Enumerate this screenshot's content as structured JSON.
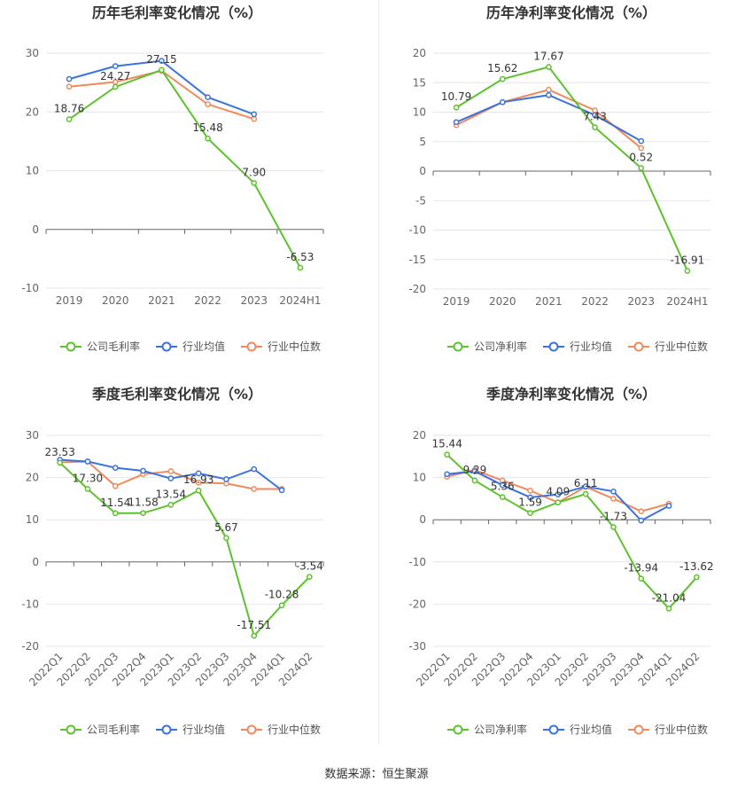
{
  "source_text": "数据来源：恒生聚源",
  "legend_labels": {
    "annual_gross": [
      "公司毛利率",
      "行业均值",
      "行业中位数"
    ],
    "annual_net": [
      "公司净利率",
      "行业均值",
      "行业中位数"
    ],
    "quarterly_gross": [
      "公司毛利率",
      "行业均值",
      "行业中位数"
    ],
    "quarterly_net": [
      "公司净利率",
      "行业均值",
      "行业中位数"
    ]
  },
  "colors": {
    "company": "#5ec12f",
    "avg": "#3b73db",
    "median": "#f08a5d",
    "grid": "#e6e6e6",
    "axis": "#555555"
  },
  "chart_data": [
    {
      "id": "annual_gross",
      "type": "line",
      "title": "历年毛利率变化情况（%）",
      "categories": [
        "2019",
        "2020",
        "2021",
        "2022",
        "2023",
        "2024H1"
      ],
      "ylim": [
        -10,
        30
      ],
      "yticks": [
        -10,
        0,
        10,
        20,
        30
      ],
      "rotate_labels": false,
      "legend": "bottom-center",
      "series": [
        {
          "name": "公司毛利率",
          "key": "company",
          "values": [
            18.76,
            24.27,
            27.15,
            15.48,
            7.9,
            -6.53
          ],
          "labels": [
            "18.76",
            "24.27",
            "27.15",
            "15.48",
            "7.90",
            "-6.53"
          ]
        },
        {
          "name": "行业均值",
          "key": "avg",
          "values": [
            25.6,
            27.8,
            28.7,
            22.5,
            19.6,
            null
          ]
        },
        {
          "name": "行业中位数",
          "key": "median",
          "values": [
            24.3,
            25.1,
            27.0,
            21.3,
            18.8,
            null
          ]
        }
      ]
    },
    {
      "id": "annual_net",
      "type": "line",
      "title": "历年净利率变化情况（%）",
      "categories": [
        "2019",
        "2020",
        "2021",
        "2022",
        "2023",
        "2024H1"
      ],
      "ylim": [
        -20,
        20
      ],
      "yticks": [
        -20,
        -15,
        -10,
        -5,
        0,
        5,
        10,
        15,
        20
      ],
      "rotate_labels": false,
      "legend": "bottom-center",
      "series": [
        {
          "name": "公司净利率",
          "key": "company",
          "values": [
            10.79,
            15.62,
            17.67,
            7.43,
            0.52,
            -16.91
          ],
          "labels": [
            "10.79",
            "15.62",
            "17.67",
            "7.43",
            "0.52",
            "-16.91"
          ]
        },
        {
          "name": "行业均值",
          "key": "avg",
          "values": [
            8.3,
            11.7,
            12.9,
            9.5,
            5.1,
            null
          ]
        },
        {
          "name": "行业中位数",
          "key": "median",
          "values": [
            7.8,
            11.7,
            13.8,
            10.3,
            3.9,
            null
          ]
        }
      ]
    },
    {
      "id": "quarterly_gross",
      "type": "line",
      "title": "季度毛利率变化情况（%）",
      "categories": [
        "2022Q1",
        "2022Q2",
        "2022Q3",
        "2022Q4",
        "2023Q1",
        "2023Q2",
        "2023Q3",
        "2023Q4",
        "2024Q1",
        "2024Q2"
      ],
      "ylim": [
        -20,
        30
      ],
      "yticks": [
        -20,
        -10,
        0,
        10,
        20,
        30
      ],
      "rotate_labels": true,
      "legend": "bottom-center",
      "series": [
        {
          "name": "公司毛利率",
          "key": "company",
          "values": [
            23.53,
            17.3,
            11.54,
            11.58,
            13.54,
            16.93,
            5.67,
            -17.51,
            -10.28,
            -3.54
          ],
          "labels": [
            "23.53",
            "17.30",
            "11.54",
            "11.58",
            "13.54",
            "16.93",
            "5.67",
            "-17.51",
            "-10.28",
            "-3.54"
          ]
        },
        {
          "name": "行业均值",
          "key": "avg",
          "values": [
            24.2,
            23.8,
            22.3,
            21.6,
            19.8,
            21.0,
            19.6,
            22.0,
            17.0,
            null
          ]
        },
        {
          "name": "行业中位数",
          "key": "median",
          "values": [
            23.6,
            23.8,
            18.0,
            20.8,
            21.5,
            18.8,
            18.6,
            17.3,
            17.3,
            null
          ]
        }
      ]
    },
    {
      "id": "quarterly_net",
      "type": "line",
      "title": "季度净利率变化情况（%）",
      "categories": [
        "2022Q1",
        "2022Q2",
        "2022Q3",
        "2022Q4",
        "2023Q1",
        "2023Q2",
        "2023Q3",
        "2023Q4",
        "2024Q1",
        "2024Q2"
      ],
      "ylim": [
        -30,
        20
      ],
      "yticks": [
        -30,
        -20,
        -10,
        0,
        10,
        20
      ],
      "rotate_labels": true,
      "legend": "bottom-center",
      "series": [
        {
          "name": "公司净利率",
          "key": "company",
          "values": [
            15.44,
            9.29,
            5.36,
            1.59,
            4.09,
            6.11,
            -1.73,
            -13.94,
            -21.04,
            -13.62
          ],
          "labels": [
            "15.44",
            "9.29",
            "5.36",
            "1.59",
            "4.09",
            "6.11",
            "-1.73",
            "-13.94",
            "-21.04",
            "-13.62"
          ]
        },
        {
          "name": "行业均值",
          "key": "avg",
          "values": [
            10.8,
            11.5,
            8.2,
            5.3,
            6.0,
            7.9,
            6.7,
            -0.2,
            3.3,
            null
          ]
        },
        {
          "name": "行业中位数",
          "key": "median",
          "values": [
            10.2,
            11.8,
            9.3,
            6.9,
            4.1,
            7.8,
            5.0,
            2.0,
            3.8,
            null
          ]
        }
      ]
    }
  ]
}
